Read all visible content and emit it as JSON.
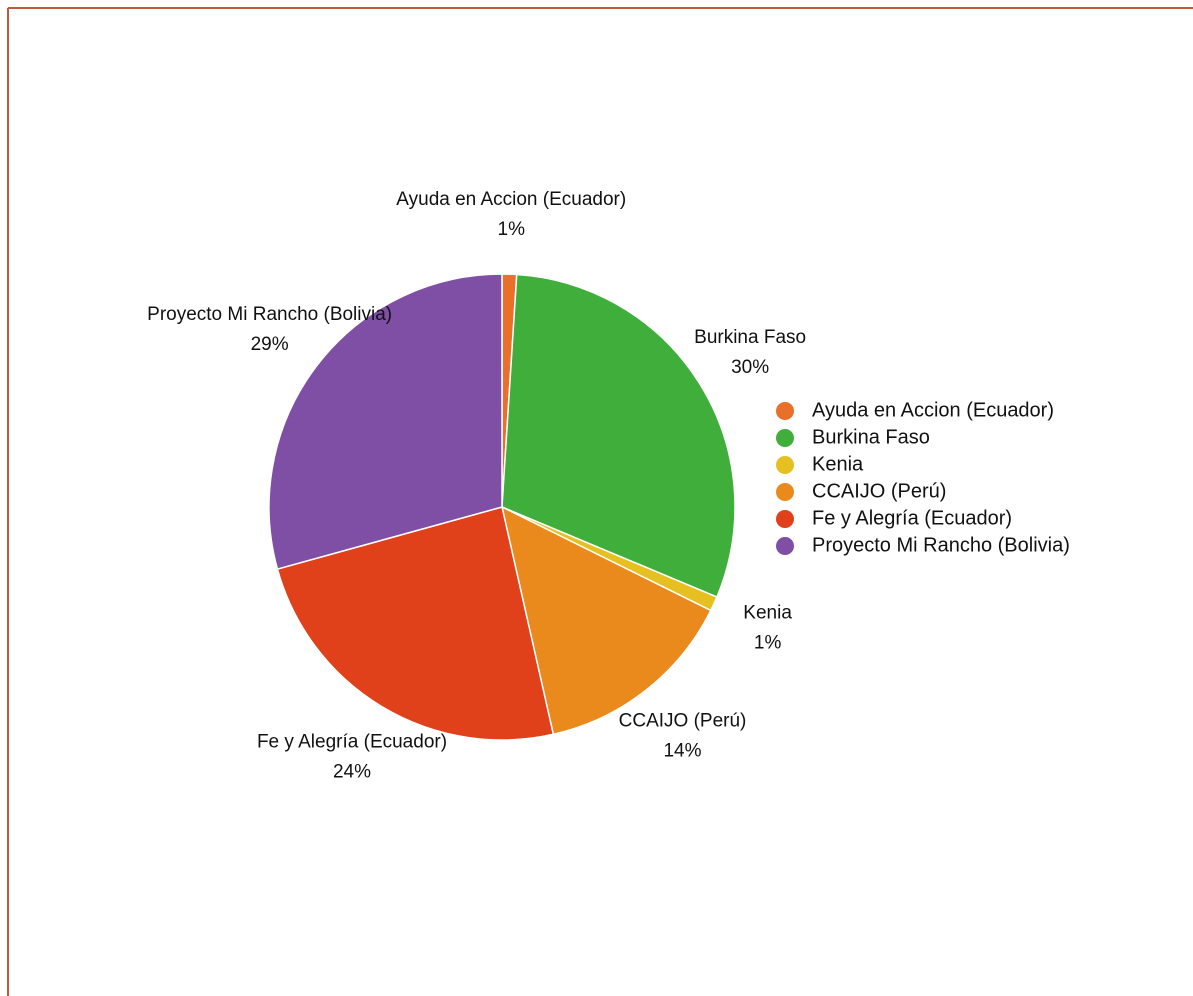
{
  "chart_data": {
    "type": "pie",
    "categories": [
      "Ayuda en Accion (Ecuador)",
      "Burkina Faso",
      "Kenia",
      "CCAIJO (Perú)",
      "Fe y Alegría (Ecuador)",
      "Proyecto Mi Rancho (Bolivia)"
    ],
    "values": [
      1,
      30,
      1,
      14,
      24,
      29
    ],
    "value_labels": [
      "1%",
      "30%",
      "1%",
      "14%",
      "24%",
      "29%"
    ],
    "colors": [
      "#e8702a",
      "#3fae3a",
      "#e6c021",
      "#ea8a1c",
      "#e0401a",
      "#7f4fa6"
    ],
    "legend": "right"
  }
}
